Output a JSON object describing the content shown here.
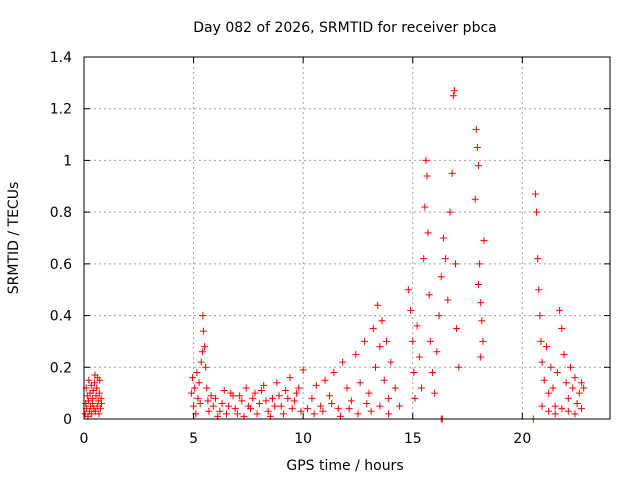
{
  "chart_data": {
    "type": "scatter",
    "title": "Day 082 of 2026, SRMTID for receiver pbca",
    "xlabel": "GPS time / hours",
    "ylabel": "SRMTID / TECUs",
    "xlim": [
      0,
      24
    ],
    "ylim": [
      0,
      1.4
    ],
    "x_ticks": [
      0,
      5,
      10,
      15,
      20
    ],
    "x_tick_labels": [
      "0",
      "5",
      "10",
      "15",
      "20"
    ],
    "y_ticks": [
      0,
      0.2,
      0.4,
      0.6,
      0.8,
      1.0,
      1.2,
      1.4
    ],
    "y_tick_labels": [
      "0",
      "0.2",
      "0.4",
      "0.6",
      "0.8",
      "1",
      "1.2",
      "1.4"
    ],
    "grid": true,
    "legend": "none",
    "marker": "plus",
    "color": "#ff0000",
    "series": [
      {
        "name": "SRMTID",
        "points": [
          [
            0.05,
            0.02
          ],
          [
            0.08,
            0.06
          ],
          [
            0.1,
            0.12
          ],
          [
            0.12,
            0.04
          ],
          [
            0.15,
            0.09
          ],
          [
            0.18,
            0.01
          ],
          [
            0.2,
            0.07
          ],
          [
            0.22,
            0.15
          ],
          [
            0.25,
            0.03
          ],
          [
            0.28,
            0.1
          ],
          [
            0.3,
            0.05
          ],
          [
            0.33,
            0.13
          ],
          [
            0.35,
            0.02
          ],
          [
            0.38,
            0.08
          ],
          [
            0.4,
            0.06
          ],
          [
            0.42,
            0.11
          ],
          [
            0.45,
            0.04
          ],
          [
            0.48,
            0.14
          ],
          [
            0.5,
            0.17
          ],
          [
            0.52,
            0.03
          ],
          [
            0.55,
            0.09
          ],
          [
            0.58,
            0.12
          ],
          [
            0.6,
            0.05
          ],
          [
            0.62,
            0.16
          ],
          [
            0.65,
            0.07
          ],
          [
            0.68,
            0.02
          ],
          [
            0.7,
            0.1
          ],
          [
            0.72,
            0.15
          ],
          [
            0.75,
            0.04
          ],
          [
            0.78,
            0.08
          ],
          [
            0.8,
            0.06
          ],
          [
            4.9,
            0.1
          ],
          [
            4.95,
            0.16
          ],
          [
            5.0,
            0.05
          ],
          [
            5.05,
            0.12
          ],
          [
            5.1,
            0.02
          ],
          [
            5.15,
            0.18
          ],
          [
            5.2,
            0.08
          ],
          [
            5.25,
            0.14
          ],
          [
            5.3,
            0.06
          ],
          [
            5.35,
            0.22
          ],
          [
            5.4,
            0.26
          ],
          [
            5.42,
            0.4
          ],
          [
            5.45,
            0.34
          ],
          [
            5.5,
            0.28
          ],
          [
            5.55,
            0.2
          ],
          [
            5.6,
            0.12
          ],
          [
            5.65,
            0.07
          ],
          [
            5.7,
            0.03
          ],
          [
            5.8,
            0.09
          ],
          [
            5.9,
            0.05
          ],
          [
            6.0,
            0.08
          ],
          [
            6.2,
            0.03
          ],
          [
            6.4,
            0.11
          ],
          [
            6.6,
            0.05
          ],
          [
            6.8,
            0.09
          ],
          [
            7.0,
            0.02
          ],
          [
            7.2,
            0.07
          ],
          [
            7.4,
            0.12
          ],
          [
            7.6,
            0.04
          ],
          [
            7.8,
            0.1
          ],
          [
            8.0,
            0.06
          ],
          [
            8.2,
            0.13
          ],
          [
            8.4,
            0.03
          ],
          [
            8.6,
            0.08
          ],
          [
            8.8,
            0.14
          ],
          [
            9.0,
            0.05
          ],
          [
            9.2,
            0.11
          ],
          [
            9.4,
            0.16
          ],
          [
            9.6,
            0.07
          ],
          [
            9.8,
            0.12
          ],
          [
            10.0,
            0.19
          ],
          [
            10.2,
            0.04
          ],
          [
            6.1,
            0.01
          ],
          [
            6.3,
            0.06
          ],
          [
            6.5,
            0.02
          ],
          [
            6.7,
            0.1
          ],
          [
            6.9,
            0.04
          ],
          [
            7.1,
            0.09
          ],
          [
            7.3,
            0.01
          ],
          [
            7.5,
            0.05
          ],
          [
            7.7,
            0.08
          ],
          [
            7.9,
            0.02
          ],
          [
            8.1,
            0.11
          ],
          [
            8.3,
            0.07
          ],
          [
            8.5,
            0.01
          ],
          [
            8.7,
            0.05
          ],
          [
            8.9,
            0.09
          ],
          [
            9.1,
            0.02
          ],
          [
            9.3,
            0.08
          ],
          [
            9.5,
            0.04
          ],
          [
            9.7,
            0.1
          ],
          [
            9.9,
            0.03
          ],
          [
            10.4,
            0.08
          ],
          [
            10.6,
            0.13
          ],
          [
            10.8,
            0.05
          ],
          [
            11.0,
            0.15
          ],
          [
            11.2,
            0.09
          ],
          [
            11.4,
            0.18
          ],
          [
            11.6,
            0.04
          ],
          [
            11.8,
            0.22
          ],
          [
            12.0,
            0.12
          ],
          [
            12.2,
            0.07
          ],
          [
            12.4,
            0.25
          ],
          [
            12.6,
            0.14
          ],
          [
            12.8,
            0.3
          ],
          [
            13.0,
            0.1
          ],
          [
            13.2,
            0.35
          ],
          [
            13.3,
            0.2
          ],
          [
            13.4,
            0.44
          ],
          [
            13.5,
            0.28
          ],
          [
            13.6,
            0.38
          ],
          [
            13.7,
            0.15
          ],
          [
            13.8,
            0.3
          ],
          [
            13.9,
            0.08
          ],
          [
            14.0,
            0.22
          ],
          [
            14.2,
            0.12
          ],
          [
            14.4,
            0.05
          ],
          [
            10.5,
            0.02
          ],
          [
            10.9,
            0.03
          ],
          [
            11.3,
            0.06
          ],
          [
            11.7,
            0.01
          ],
          [
            12.1,
            0.04
          ],
          [
            12.5,
            0.02
          ],
          [
            12.9,
            0.06
          ],
          [
            13.1,
            0.03
          ],
          [
            13.5,
            0.05
          ],
          [
            13.9,
            0.02
          ],
          [
            14.8,
            0.5
          ],
          [
            14.9,
            0.42
          ],
          [
            15.0,
            0.3
          ],
          [
            15.05,
            0.18
          ],
          [
            15.1,
            0.08
          ],
          [
            15.2,
            0.36
          ],
          [
            15.3,
            0.24
          ],
          [
            15.4,
            0.12
          ],
          [
            15.5,
            0.62
          ],
          [
            15.55,
            0.82
          ],
          [
            15.6,
            1.0
          ],
          [
            15.65,
            0.94
          ],
          [
            15.7,
            0.72
          ],
          [
            15.75,
            0.48
          ],
          [
            15.8,
            0.3
          ],
          [
            15.9,
            0.18
          ],
          [
            16.0,
            0.1
          ],
          [
            16.1,
            0.26
          ],
          [
            16.2,
            0.4
          ],
          [
            16.3,
            0.55
          ],
          [
            16.4,
            0.7
          ],
          [
            16.5,
            0.62
          ],
          [
            16.6,
            0.46
          ],
          [
            16.7,
            0.8
          ],
          [
            16.8,
            0.95
          ],
          [
            16.85,
            1.25
          ],
          [
            16.9,
            1.27
          ],
          [
            16.95,
            0.6
          ],
          [
            17.0,
            0.35
          ],
          [
            17.1,
            0.2
          ],
          [
            16.3,
            0.0
          ],
          [
            16.35,
            0.0
          ],
          [
            20.5,
            0.0
          ],
          [
            17.85,
            0.85
          ],
          [
            17.9,
            1.12
          ],
          [
            17.95,
            1.05
          ],
          [
            18.0,
            0.98
          ],
          [
            18.05,
            0.6
          ],
          [
            18.1,
            0.45
          ],
          [
            18.15,
            0.38
          ],
          [
            18.2,
            0.3
          ],
          [
            18.25,
            0.69
          ],
          [
            18.0,
            0.52
          ],
          [
            18.1,
            0.24
          ],
          [
            20.6,
            0.87
          ],
          [
            20.65,
            0.8
          ],
          [
            20.7,
            0.62
          ],
          [
            20.75,
            0.5
          ],
          [
            20.8,
            0.4
          ],
          [
            20.85,
            0.3
          ],
          [
            20.9,
            0.22
          ],
          [
            21.0,
            0.15
          ],
          [
            21.1,
            0.28
          ],
          [
            21.2,
            0.1
          ],
          [
            21.3,
            0.2
          ],
          [
            21.4,
            0.12
          ],
          [
            21.5,
            0.05
          ],
          [
            21.6,
            0.18
          ],
          [
            21.7,
            0.42
          ],
          [
            21.8,
            0.35
          ],
          [
            21.9,
            0.25
          ],
          [
            22.0,
            0.14
          ],
          [
            22.1,
            0.08
          ],
          [
            22.2,
            0.2
          ],
          [
            22.3,
            0.12
          ],
          [
            22.4,
            0.16
          ],
          [
            22.5,
            0.06
          ],
          [
            22.6,
            0.1
          ],
          [
            22.7,
            0.14
          ],
          [
            22.8,
            0.12
          ],
          [
            20.9,
            0.05
          ],
          [
            21.2,
            0.03
          ],
          [
            21.5,
            0.02
          ],
          [
            21.8,
            0.04
          ],
          [
            22.1,
            0.03
          ],
          [
            22.4,
            0.02
          ],
          [
            22.7,
            0.04
          ]
        ]
      }
    ]
  }
}
